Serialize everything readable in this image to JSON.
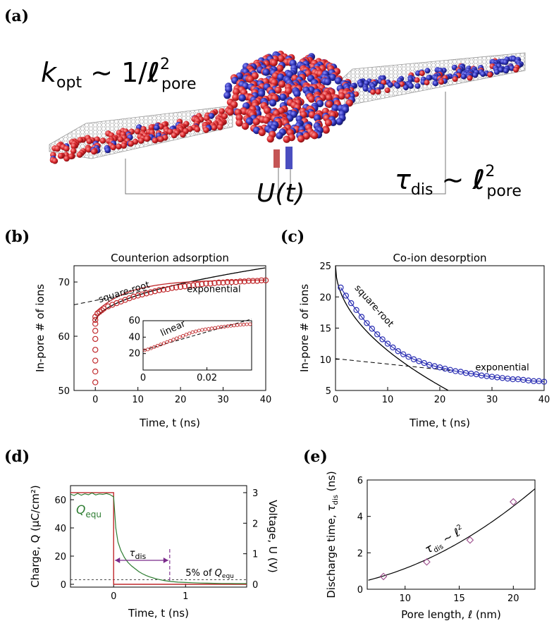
{
  "panel_labels": [
    "(a)",
    "(b)",
    "(c)",
    "(d)",
    "(e)"
  ],
  "panel_a": {
    "formula_left": {
      "main": "k",
      "sub": "opt",
      "mid": " ∼ 1/",
      "ell": "ℓ",
      "sup": "2",
      "sub2": "pore"
    },
    "formula_right": {
      "main": "τ",
      "sub": "dis",
      "mid": " ∼ ",
      "ell": "ℓ",
      "sup": "2",
      "sub2": "pore"
    },
    "voltage_label": "U(t)",
    "colors": {
      "cation": "#d7262a",
      "anion": "#2b2fb3",
      "pore": "#9a9a9a"
    }
  },
  "chart_data": [
    {
      "id": "b",
      "type": "scatter",
      "title": "Counterion adsorption",
      "xlabel": "Time, t (ns)",
      "ylabel": "In-pore # of ions",
      "xlim": [
        -5,
        40
      ],
      "ylim": [
        50,
        73
      ],
      "xticks": [
        0,
        10,
        20,
        30,
        40
      ],
      "yticks": [
        50,
        60,
        70
      ],
      "series": [
        {
          "color": "#c0282b",
          "x": [
            0,
            0,
            0,
            0,
            0,
            0,
            0,
            0,
            0,
            0.5,
            1,
            1.5,
            2,
            3,
            4,
            5,
            6,
            7,
            8,
            9,
            10,
            11,
            12,
            13,
            14,
            15,
            16,
            17,
            18,
            19,
            20,
            21,
            22,
            23,
            24,
            25,
            26,
            27,
            28,
            29,
            30,
            31,
            32,
            33,
            34,
            35,
            36,
            37,
            38,
            39,
            40
          ],
          "y": [
            51.5,
            53.5,
            55.5,
            57.5,
            59.5,
            61,
            62.3,
            63,
            63.6,
            64.2,
            64.5,
            64.8,
            65.1,
            65.5,
            65.8,
            66.1,
            66.4,
            66.7,
            67,
            67.3,
            67.5,
            67.7,
            67.9,
            68.1,
            68.3,
            68.5,
            68.6,
            68.7,
            68.9,
            69,
            69.1,
            69.2,
            69.3,
            69.4,
            69.5,
            69.6,
            69.7,
            69.7,
            69.8,
            69.9,
            69.9,
            70,
            70,
            70,
            70.1,
            70.1,
            70.2,
            70.2,
            70.2,
            70.3,
            70.3
          ]
        }
      ],
      "curves": {
        "sqrt_label": "square-root",
        "exp_label": "exponential"
      },
      "inset": {
        "xlim": [
          0,
          0.034
        ],
        "ylim": [
          0,
          60
        ],
        "xticks": [
          0,
          0.02
        ],
        "yticks": [
          20,
          40,
          60
        ],
        "annotation": "linear",
        "x": [
          0.0005,
          0.0015,
          0.0025,
          0.0035,
          0.0045,
          0.0055,
          0.0065,
          0.0075,
          0.0085,
          0.0095,
          0.0105,
          0.0115,
          0.0125,
          0.0135,
          0.0145,
          0.0155,
          0.0165,
          0.0175,
          0.0185,
          0.0195,
          0.0205,
          0.0215,
          0.0225,
          0.0235,
          0.0245,
          0.0255,
          0.0265,
          0.0275,
          0.0285,
          0.0295,
          0.0305,
          0.0315,
          0.0325,
          0.0335
        ],
        "y": [
          24,
          25,
          26.5,
          28,
          29.5,
          31,
          32.5,
          34,
          35.5,
          37,
          38.5,
          40,
          41.5,
          43,
          44.5,
          46,
          47,
          48,
          48.8,
          49.5,
          50,
          50.6,
          51.2,
          51.8,
          52.3,
          52.8,
          53.3,
          53.8,
          54.2,
          54.6,
          55,
          55.3,
          55.6,
          55.8
        ]
      }
    },
    {
      "id": "c",
      "type": "scatter",
      "title": "Co-ion desorption",
      "xlabel": "Time, t (ns)",
      "ylabel": "In-pore # of ions",
      "xlim": [
        0,
        40
      ],
      "ylim": [
        5,
        25
      ],
      "xticks": [
        0,
        10,
        20,
        30,
        40
      ],
      "yticks": [
        5,
        10,
        15,
        20,
        25
      ],
      "series": [
        {
          "color": "#2b2fb3",
          "x": [
            1,
            2,
            3,
            4,
            5,
            6,
            7,
            8,
            9,
            10,
            11,
            12,
            13,
            14,
            15,
            16,
            17,
            18,
            19,
            20,
            21,
            22,
            23,
            24,
            25,
            26,
            27,
            28,
            29,
            30,
            31,
            32,
            33,
            34,
            35,
            36,
            37,
            38,
            39,
            40
          ],
          "y": [
            21.5,
            20.2,
            19,
            17.9,
            16.8,
            15.8,
            14.9,
            14,
            13.2,
            12.5,
            11.9,
            11.3,
            10.8,
            10.4,
            10,
            9.7,
            9.4,
            9.1,
            8.9,
            8.7,
            8.5,
            8.3,
            8.1,
            8,
            7.8,
            7.7,
            7.6,
            7.4,
            7.3,
            7.2,
            7.1,
            7,
            6.9,
            6.8,
            6.8,
            6.7,
            6.6,
            6.5,
            6.5,
            6.4
          ]
        }
      ],
      "curves": {
        "sqrt_label": "square-root",
        "exp_label": "exponential"
      }
    },
    {
      "id": "d",
      "type": "line",
      "xlabel": "Time, t (ns)",
      "ylabel_left": "Charge, Q (μC/cm²)",
      "ylabel_right": "Voltage, U (V)",
      "xlim": [
        -0.6,
        1.85
      ],
      "ylim": [
        -2,
        70
      ],
      "ylim_right": [
        -0.0923,
        3.23
      ],
      "xticks": [
        0,
        1
      ],
      "yticks": [
        0,
        20,
        40,
        60
      ],
      "yticks_right": [
        0,
        1,
        2,
        3
      ],
      "charge": {
        "color": "#2e7d32",
        "t": [
          -0.6,
          -0.55,
          -0.5,
          -0.45,
          -0.4,
          -0.35,
          -0.3,
          -0.25,
          -0.2,
          -0.15,
          -0.1,
          -0.05,
          0,
          0.03,
          0.06,
          0.1,
          0.15,
          0.2,
          0.25,
          0.3,
          0.35,
          0.4,
          0.45,
          0.5,
          0.55,
          0.6,
          0.65,
          0.7,
          0.75,
          0.8,
          0.9,
          1.0,
          1.1,
          1.2,
          1.3,
          1.4,
          1.5,
          1.6,
          1.7,
          1.85
        ],
        "q": [
          64,
          63,
          64.5,
          63.2,
          64.2,
          63.5,
          64.8,
          63.4,
          64.1,
          63.8,
          64.4,
          63.6,
          62,
          40,
          30,
          24,
          19,
          15.5,
          13,
          11,
          9,
          7.5,
          6.3,
          5.3,
          4.5,
          3.8,
          3.2,
          2.7,
          2.3,
          2,
          1.5,
          1.3,
          1.1,
          0.9,
          0.8,
          0.7,
          0.6,
          0.6,
          0.5,
          0.5
        ]
      },
      "voltage": {
        "color": "#c0282b",
        "t": [
          -0.6,
          0,
          0,
          1.85
        ],
        "u": [
          3,
          3,
          0,
          0
        ]
      },
      "threshold": {
        "value": 3.2,
        "label_pre": "5% of ",
        "label_q": "Q",
        "label_sub": "equ"
      },
      "tau_marker": {
        "t": 0.78,
        "label": "τ",
        "label_sub": "dis",
        "color": "#7a2a8a"
      },
      "q_label": {
        "main": "Q",
        "sub": "equ"
      }
    },
    {
      "id": "e",
      "type": "scatter",
      "xlabel": "Pore length, ℓ (nm)",
      "ylabel": "Discharge time, τdis (ns)",
      "ylabel_parts": {
        "pre": "Discharge time, ",
        "sym": "τ",
        "sub": "dis",
        "post": " (ns)"
      },
      "xlim": [
        6.5,
        22
      ],
      "ylim": [
        0,
        6
      ],
      "xticks": [
        10,
        15,
        20
      ],
      "yticks": [
        0,
        2,
        4,
        6
      ],
      "points": {
        "color": "#9a4a8a",
        "x": [
          8,
          12,
          16,
          20
        ],
        "y": [
          0.7,
          1.5,
          2.7,
          4.8
        ]
      },
      "fit": {
        "coef": 0.0114
      },
      "annotation": {
        "sym": "τ",
        "sub": "dis",
        "mid": " ∼ ",
        "ell": "ℓ",
        "sup": "2"
      }
    }
  ]
}
